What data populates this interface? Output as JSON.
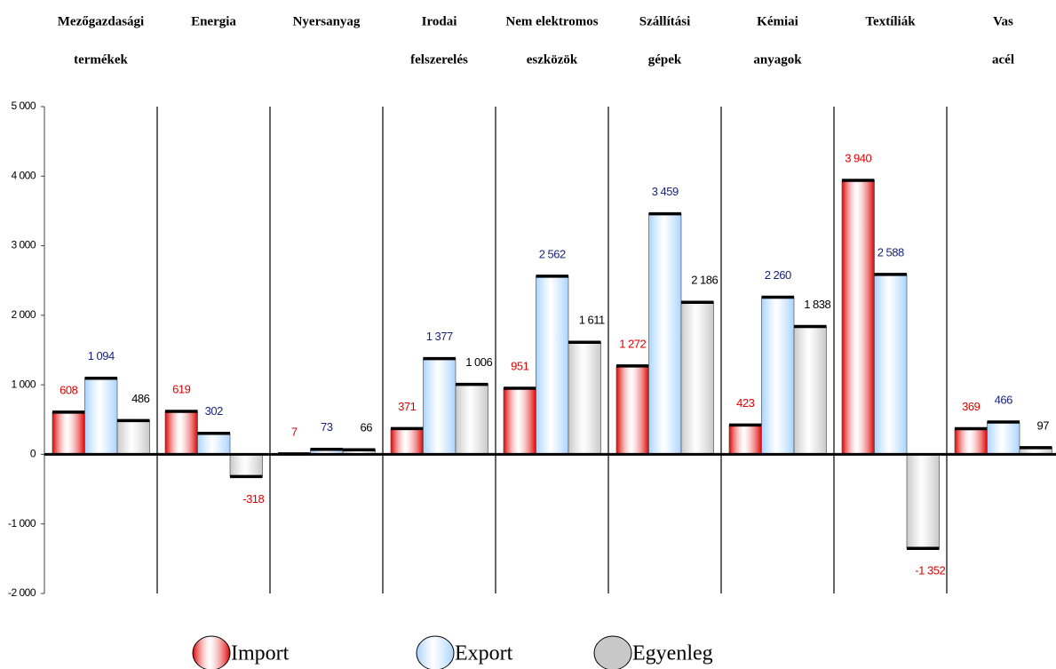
{
  "chart_data": {
    "type": "bar",
    "categories": [
      [
        "Mezőgazdasági",
        "termékek"
      ],
      [
        "Energia"
      ],
      [
        "Nyersanyag"
      ],
      [
        "Irodai",
        "felszerelés"
      ],
      [
        "Nem elektromos",
        "eszközök"
      ],
      [
        "Szállítási",
        "gépek"
      ],
      [
        "Kémiai",
        "anyagok"
      ],
      [
        "Textíliák"
      ],
      [
        "Vas",
        "acél"
      ]
    ],
    "series": [
      {
        "name": "Import",
        "color": "#e00000",
        "values": [
          608,
          619,
          7,
          371,
          951,
          1272,
          423,
          3940,
          369
        ],
        "value_labels": [
          "608",
          "619",
          "7",
          "371",
          "951",
          "1 272",
          "423",
          "3 940",
          "369"
        ]
      },
      {
        "name": "Export",
        "color": "#aad4ff",
        "values": [
          1094,
          302,
          73,
          1377,
          2562,
          3459,
          2260,
          2588,
          466
        ],
        "value_labels": [
          "1 094",
          "302",
          "73",
          "1 377",
          "2 562",
          "3 459",
          "2 260",
          "2 588",
          "466"
        ]
      },
      {
        "name": "Egyenleg",
        "color": "#c8c8c8",
        "values": [
          486,
          -318,
          66,
          1006,
          1611,
          2186,
          1838,
          -1352,
          97
        ],
        "value_labels": [
          "486",
          "-318",
          "66",
          "1 006",
          "1 611",
          "2 186",
          "1 838",
          "-1 352",
          "97"
        ]
      }
    ],
    "ylim": [
      -2000,
      5000
    ],
    "yticks": [
      {
        "value": -2000,
        "label": "-2 000"
      },
      {
        "value": -1000,
        "label": "-1 000"
      },
      0,
      {
        "value": 1000,
        "label": "1 000"
      },
      {
        "value": 2000,
        "label": "2 000"
      },
      {
        "value": 3000,
        "label": "3 000"
      },
      {
        "value": 4000,
        "label": "4 000"
      },
      {
        "value": 5000,
        "label": "5 000"
      }
    ]
  }
}
